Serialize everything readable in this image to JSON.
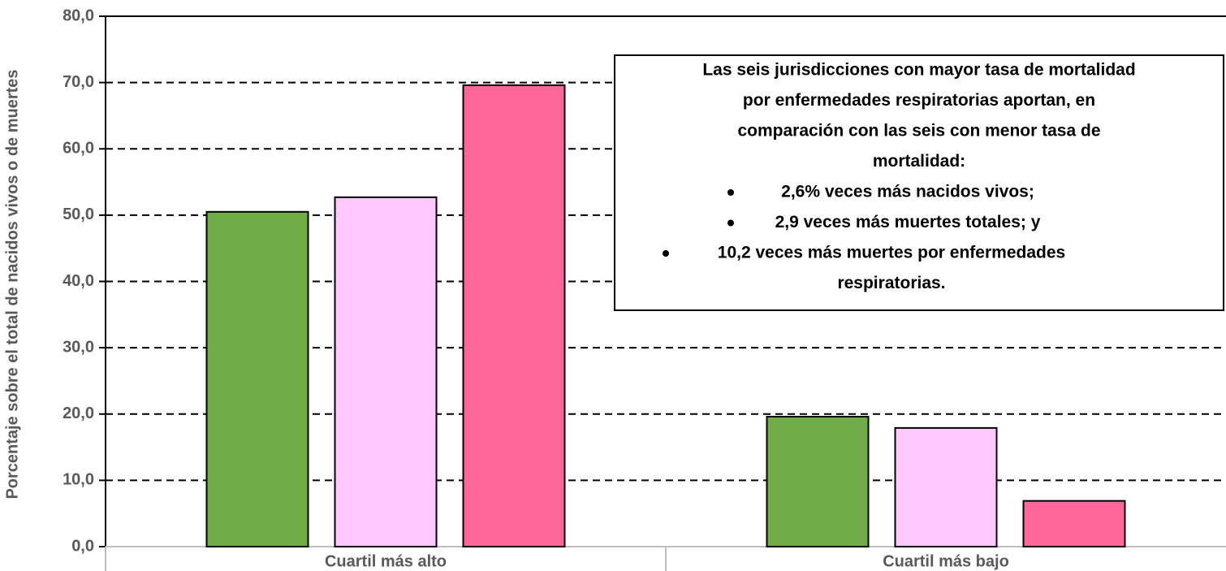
{
  "chart_data": {
    "type": "bar",
    "y_label": "Porcentaje sobre el total de nacidos vivos o de muertes",
    "categories": [
      "Cuartil más alto",
      "Cuartil más bajo"
    ],
    "series": [
      {
        "color": "#70ad47",
        "values": [
          50.5,
          19.6
        ]
      },
      {
        "color": "#ffc9ff",
        "values": [
          52.7,
          17.9
        ]
      },
      {
        "color": "#ff6699",
        "values": [
          69.6,
          6.9
        ]
      }
    ],
    "ylim": [
      0,
      80
    ],
    "yticks": [
      {
        "value": 0,
        "label": "0,0"
      },
      {
        "value": 10,
        "label": "10,0"
      },
      {
        "value": 20,
        "label": "20,0"
      },
      {
        "value": 30,
        "label": "30,0"
      },
      {
        "value": 40,
        "label": "40,0"
      },
      {
        "value": 50,
        "label": "50,0"
      },
      {
        "value": 60,
        "label": "60,0"
      },
      {
        "value": 70,
        "label": "70,0"
      },
      {
        "value": 80,
        "label": "80,0"
      }
    ],
    "grid": true,
    "annotation": {
      "lines": [
        "Las seis jurisdicciones con mayor tasa de mortalidad",
        "por enfermedades respiratorias aportan, en",
        "comparación con las seis con menor tasa de",
        "mortalidad:"
      ],
      "bullets": [
        [
          "2,6% veces más nacidos vivos;"
        ],
        [
          "2,9 veces más muertes totales; y"
        ],
        [
          "10,2 veces más muertes por enfermedades",
          "respiratorias."
        ]
      ]
    }
  }
}
